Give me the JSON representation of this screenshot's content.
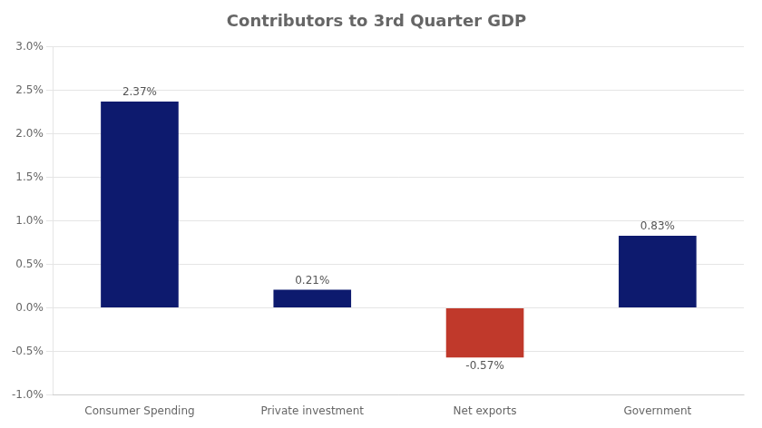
{
  "chart_data": {
    "type": "bar",
    "title": "Contributors to 3rd Quarter GDP",
    "categories": [
      "Consumer Spending",
      "Private investment",
      "Net exports",
      "Government"
    ],
    "values": [
      2.37,
      0.21,
      -0.57,
      0.83
    ],
    "value_labels": [
      "2.37%",
      "0.21%",
      "-0.57%",
      "0.83%"
    ],
    "colors": [
      "#0d1a6e",
      "#0d1a6e",
      "#c0392b",
      "#0d1a6e"
    ],
    "data_labels": true,
    "ylim": [
      -1.0,
      3.0
    ],
    "yticks": [
      {
        "value": -1.0,
        "label": "-1.0%"
      },
      {
        "value": -0.5,
        "label": "-0.5%"
      },
      {
        "value": 0.0,
        "label": "0.0%"
      },
      {
        "value": 0.5,
        "label": "0.5%"
      },
      {
        "value": 1.0,
        "label": "1.0%"
      },
      {
        "value": 1.5,
        "label": "1.5%"
      },
      {
        "value": 2.0,
        "label": "2.0%"
      },
      {
        "value": 2.5,
        "label": "2.5%"
      },
      {
        "value": 3.0,
        "label": "3.0%"
      }
    ],
    "grid": true
  }
}
